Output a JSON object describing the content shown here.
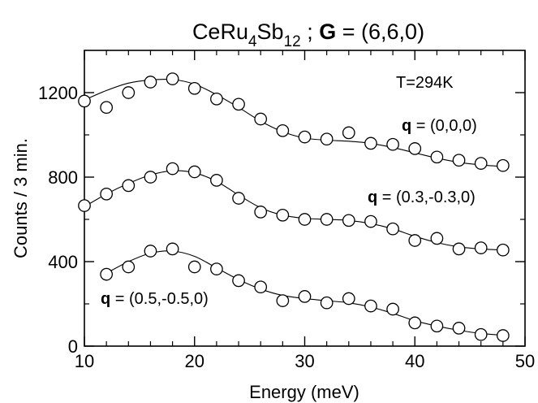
{
  "chart_data": {
    "type": "scatter",
    "title": {
      "compound": "CeRu",
      "sub1": "4",
      "compound2": "Sb",
      "sub2": "12",
      "separator": " ; ",
      "vector_symbol": "G",
      "vector_value": " = (6,6,0)"
    },
    "xlabel": "Energy (meV)",
    "ylabel": "Counts / 3 min.",
    "xlim": [
      10,
      50
    ],
    "ylim": [
      0,
      1400
    ],
    "xticks": [
      10,
      20,
      30,
      40,
      50
    ],
    "yticks": [
      0,
      400,
      800,
      1200
    ],
    "grid": false,
    "annotation": "T=294K",
    "series": [
      {
        "label_symbol": "q",
        "label_value": " = (0,0,0)",
        "x": [
          10,
          12,
          14,
          16,
          18,
          20,
          22,
          24,
          26,
          28,
          30,
          32,
          34,
          36,
          38,
          40,
          42,
          44,
          46,
          48
        ],
        "y": [
          1160,
          1130,
          1200,
          1250,
          1265,
          1220,
          1170,
          1145,
          1075,
          1020,
          990,
          980,
          1010,
          960,
          955,
          935,
          895,
          880,
          865,
          855
        ],
        "fit_y": [
          1165,
          1210,
          1245,
          1260,
          1262,
          1240,
          1190,
          1130,
          1065,
          1015,
          985,
          975,
          970,
          960,
          940,
          915,
          890,
          870,
          858,
          850
        ]
      },
      {
        "label_symbol": "q",
        "label_value": " = (0.3,-0.3,0)",
        "x": [
          10,
          12,
          14,
          16,
          18,
          20,
          22,
          24,
          26,
          28,
          30,
          32,
          34,
          36,
          38,
          40,
          42,
          44,
          46,
          48
        ],
        "y": [
          665,
          720,
          760,
          800,
          840,
          825,
          785,
          700,
          635,
          620,
          600,
          600,
          595,
          590,
          555,
          500,
          510,
          460,
          465,
          455
        ],
        "fit_y": [
          660,
          720,
          770,
          810,
          830,
          820,
          780,
          715,
          655,
          620,
          605,
          600,
          595,
          580,
          555,
          520,
          490,
          470,
          460,
          455
        ]
      },
      {
        "label_symbol": "q",
        "label_value": " = (0.5,-0.5,0)",
        "x": [
          12,
          14,
          16,
          18,
          20,
          22,
          24,
          26,
          28,
          30,
          32,
          34,
          36,
          38,
          40,
          42,
          44,
          46,
          48
        ],
        "y": [
          340,
          375,
          450,
          460,
          375,
          365,
          310,
          280,
          215,
          235,
          205,
          225,
          190,
          175,
          110,
          95,
          85,
          55,
          50
        ],
        "fit_y": [
          345,
          400,
          440,
          450,
          425,
          370,
          315,
          270,
          240,
          225,
          215,
          205,
          185,
          155,
          120,
          95,
          75,
          60,
          52
        ]
      }
    ]
  }
}
